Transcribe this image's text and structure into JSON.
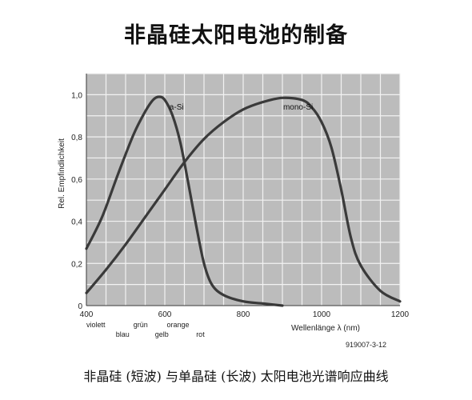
{
  "title": "非晶硅太阳电池的制备",
  "caption": "非晶硅 (短波) 与单晶硅 (长波) 太阳电池光谱响应曲线",
  "figure_code": "919007-3-12",
  "colors": {
    "plot_bg": "#bcbcbc",
    "grid": "#f2f2f2",
    "curve": "#3a3a3a"
  },
  "chart_data": {
    "type": "line",
    "xlabel": "Wellenlänge λ (nm)",
    "ylabel": "Rel. Empfindlichkeit",
    "xlim": [
      400,
      1200
    ],
    "ylim": [
      0,
      1.1
    ],
    "x_ticks": [
      "400",
      "600",
      "800",
      "1000",
      "1200"
    ],
    "y_ticks": [
      "0",
      "0,2",
      "0,4",
      "0,6",
      "0,8",
      "1,0"
    ],
    "color_labels": [
      {
        "text": "violett",
        "x": 400,
        "row": 1
      },
      {
        "text": "grün",
        "x": 520,
        "row": 1
      },
      {
        "text": "orange",
        "x": 605,
        "row": 1
      },
      {
        "text": "blau",
        "x": 475,
        "row": 2
      },
      {
        "text": "gelb",
        "x": 575,
        "row": 2
      },
      {
        "text": "rot",
        "x": 680,
        "row": 2
      }
    ],
    "series": [
      {
        "name": "a-Si",
        "label_at": [
          630,
          0.93
        ],
        "points": [
          [
            400,
            0.27
          ],
          [
            440,
            0.42
          ],
          [
            480,
            0.62
          ],
          [
            520,
            0.81
          ],
          [
            550,
            0.92
          ],
          [
            570,
            0.975
          ],
          [
            585,
            0.99
          ],
          [
            600,
            0.975
          ],
          [
            620,
            0.9
          ],
          [
            640,
            0.77
          ],
          [
            660,
            0.58
          ],
          [
            680,
            0.38
          ],
          [
            700,
            0.2
          ],
          [
            720,
            0.1
          ],
          [
            750,
            0.05
          ],
          [
            800,
            0.02
          ],
          [
            850,
            0.01
          ],
          [
            900,
            0.0
          ]
        ]
      },
      {
        "name": "mono-Si",
        "label_at": [
          940,
          0.93
        ],
        "points": [
          [
            400,
            0.06
          ],
          [
            450,
            0.17
          ],
          [
            500,
            0.29
          ],
          [
            550,
            0.42
          ],
          [
            600,
            0.55
          ],
          [
            650,
            0.68
          ],
          [
            700,
            0.79
          ],
          [
            750,
            0.87
          ],
          [
            800,
            0.93
          ],
          [
            850,
            0.965
          ],
          [
            900,
            0.985
          ],
          [
            950,
            0.975
          ],
          [
            975,
            0.94
          ],
          [
            1000,
            0.87
          ],
          [
            1025,
            0.75
          ],
          [
            1050,
            0.55
          ],
          [
            1075,
            0.32
          ],
          [
            1100,
            0.19
          ],
          [
            1150,
            0.07
          ],
          [
            1200,
            0.02
          ]
        ]
      }
    ]
  }
}
